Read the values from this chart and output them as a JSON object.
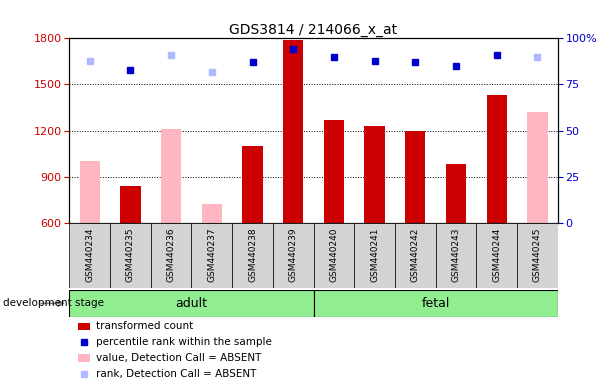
{
  "title": "GDS3814 / 214066_x_at",
  "samples": [
    "GSM440234",
    "GSM440235",
    "GSM440236",
    "GSM440237",
    "GSM440238",
    "GSM440239",
    "GSM440240",
    "GSM440241",
    "GSM440242",
    "GSM440243",
    "GSM440244",
    "GSM440245"
  ],
  "transformed_count": [
    null,
    840,
    null,
    null,
    1100,
    1790,
    1270,
    1230,
    1200,
    980,
    1430,
    null
  ],
  "absent_value": [
    1000,
    null,
    1210,
    720,
    null,
    null,
    null,
    null,
    null,
    null,
    null,
    1320
  ],
  "percentile_rank": [
    null,
    83,
    null,
    null,
    87,
    94,
    90,
    88,
    87,
    85,
    91,
    null
  ],
  "absent_rank": [
    88,
    null,
    91,
    82,
    null,
    null,
    null,
    null,
    null,
    null,
    null,
    90
  ],
  "ylim_left": [
    600,
    1800
  ],
  "ylim_right": [
    0,
    100
  ],
  "yticks_left": [
    600,
    900,
    1200,
    1500,
    1800
  ],
  "yticks_right": [
    0,
    25,
    50,
    75,
    100
  ],
  "bar_color_present": "#cc0000",
  "bar_color_absent": "#ffb6c1",
  "dot_color_present": "#0000cc",
  "dot_color_absent": "#b0b8ff",
  "label_bg_color": "#d3d3d3",
  "group_color": "#90ee90",
  "adult_count": 6,
  "fetal_count": 6
}
